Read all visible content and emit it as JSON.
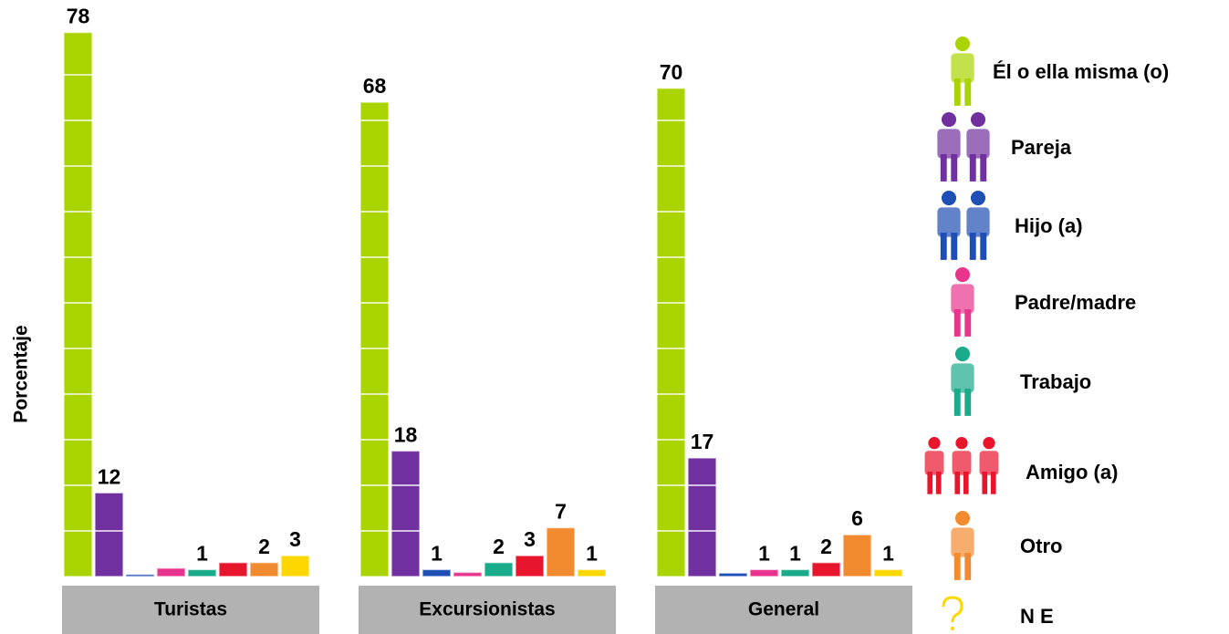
{
  "chart_data": {
    "type": "bar",
    "y_label": "Porcentaje",
    "categories": [
      "Turistas",
      "Excursionistas",
      "General"
    ],
    "ylim": [
      0,
      82
    ],
    "series": [
      {
        "name": "Él o ella misma (o)",
        "color": "#aad400",
        "values": [
          78,
          68,
          70
        ],
        "value_labels": [
          "78",
          "68",
          "70"
        ]
      },
      {
        "name": "Pareja",
        "color": "#7030a0",
        "values": [
          12,
          18,
          17
        ],
        "value_labels": [
          "12",
          "18",
          "17"
        ]
      },
      {
        "name": "Hijo (a)",
        "color": "#1f4eb4",
        "values": [
          0.3,
          1,
          0.5
        ],
        "value_labels": [
          null,
          "1",
          null
        ]
      },
      {
        "name": "Padre/madre",
        "color": "#e8348c",
        "values": [
          1.2,
          0.6,
          1
        ],
        "value_labels": [
          null,
          null,
          "1"
        ]
      },
      {
        "name": "Trabajo",
        "color": "#1aab8a",
        "values": [
          1,
          2,
          1
        ],
        "value_labels": [
          "1",
          "2",
          "1"
        ]
      },
      {
        "name": "Amigo (a)",
        "color": "#e8162d",
        "values": [
          2,
          3,
          2
        ],
        "value_labels": [
          null,
          "3",
          "2"
        ]
      },
      {
        "name": "Otro",
        "color": "#f28a30",
        "values": [
          2,
          7,
          6
        ],
        "value_labels": [
          "2",
          "7",
          "6"
        ]
      },
      {
        "name": "N E",
        "color": "#ffd700",
        "values": [
          3,
          1,
          1
        ],
        "value_labels": [
          "3",
          "1",
          "1"
        ]
      }
    ]
  }
}
